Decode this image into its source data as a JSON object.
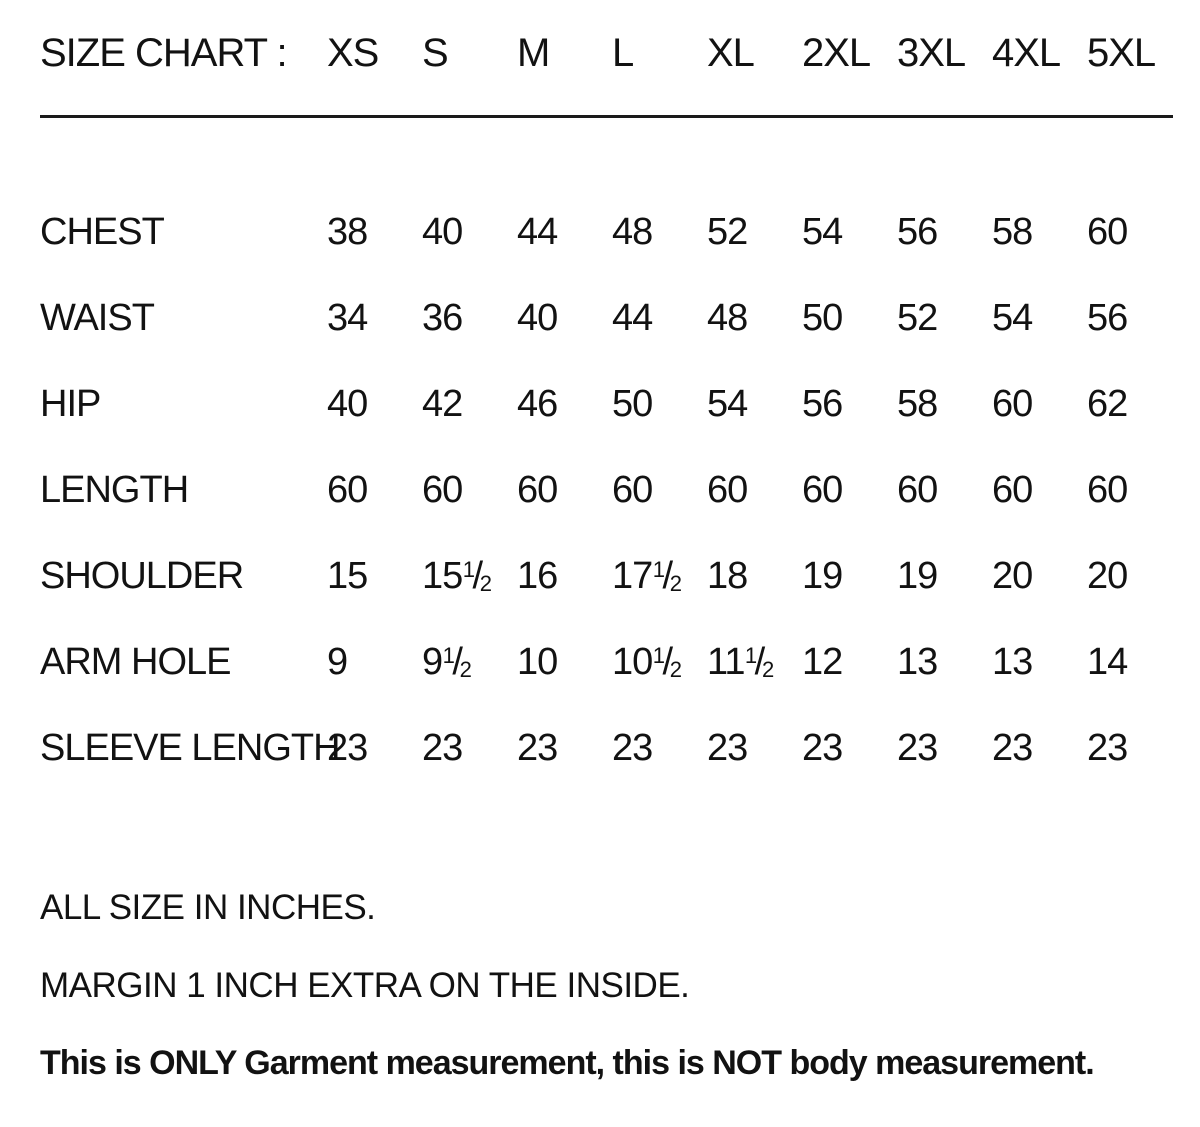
{
  "page": {
    "background_color": "#ffffff",
    "text_color": "#121212",
    "divider_color": "#1a1a1a",
    "units": "inches"
  },
  "chart_data": {
    "type": "table",
    "title": "SIZE CHART :",
    "columns": [
      "XS",
      "S",
      "M",
      "L",
      "XL",
      "2XL",
      "3XL",
      "4XL",
      "5XL"
    ],
    "rows": [
      {
        "label": "CHEST",
        "values": [
          "38",
          "40",
          "44",
          "48",
          "52",
          "54",
          "56",
          "58",
          "60"
        ]
      },
      {
        "label": "WAIST",
        "values": [
          "34",
          "36",
          "40",
          "44",
          "48",
          "50",
          "52",
          "54",
          "56"
        ]
      },
      {
        "label": "HIP",
        "values": [
          "40",
          "42",
          "46",
          "50",
          "54",
          "56",
          "58",
          "60",
          "62"
        ]
      },
      {
        "label": "LENGTH",
        "values": [
          "60",
          "60",
          "60",
          "60",
          "60",
          "60",
          "60",
          "60",
          "60"
        ]
      },
      {
        "label": "SHOULDER",
        "values": [
          "15",
          "15 1/2",
          "16",
          "17 1/2",
          "18",
          "19",
          "19",
          "20",
          "20"
        ]
      },
      {
        "label": "ARM HOLE",
        "values": [
          "9",
          "9 1/2",
          "10",
          "10 1/2",
          "11 1/2",
          "12",
          "13",
          "13",
          "14"
        ]
      },
      {
        "label": "SLEEVE LENGTH",
        "values": [
          "23",
          "23",
          "23",
          "23",
          "23",
          "23",
          "23",
          "23",
          "23"
        ]
      }
    ]
  },
  "notes": {
    "line1": "ALL SIZE IN INCHES.",
    "line2": "MARGIN 1 INCH EXTRA ON THE INSIDE.",
    "line3": "This is ONLY Garment measurement, this is NOT body measurement."
  }
}
